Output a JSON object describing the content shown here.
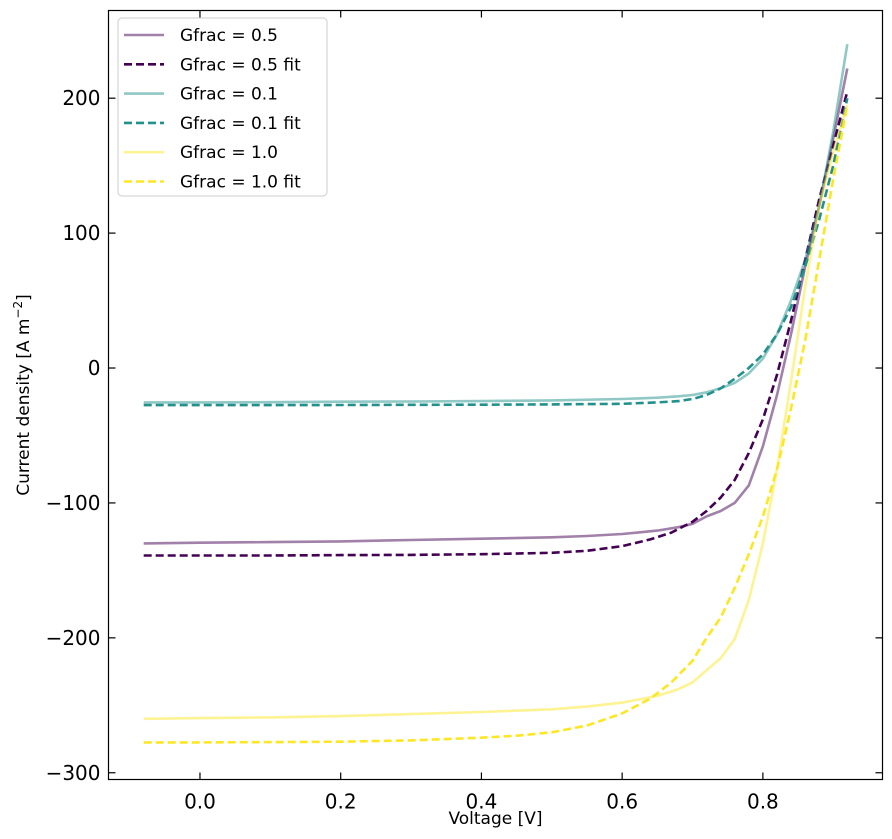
{
  "chart_data": {
    "type": "line",
    "xlabel": "Voltage [V]",
    "ylabel": "Current density [A m",
    "ylabel_sup": "−2",
    "ylabel_end": "]",
    "xlim": [
      -0.13,
      0.97
    ],
    "ylim": [
      -305,
      265
    ],
    "xticks": [
      0.0,
      0.2,
      0.4,
      0.6,
      0.8
    ],
    "xtick_labels": [
      "0.0",
      "0.2",
      "0.4",
      "0.6",
      "0.8"
    ],
    "yticks": [
      -300,
      -200,
      -100,
      0,
      100,
      200
    ],
    "ytick_labels": [
      "−300",
      "−200",
      "−100",
      "0",
      "100",
      "200"
    ],
    "grid": false,
    "legend_position": "top-left",
    "series": [
      {
        "name": "Gfrac = 0.5",
        "color": "#440154",
        "style": "solid",
        "opacity": 0.5,
        "x": [
          -0.08,
          0.0,
          0.1,
          0.2,
          0.3,
          0.4,
          0.5,
          0.55,
          0.6,
          0.65,
          0.68,
          0.7,
          0.72,
          0.74,
          0.76,
          0.78,
          0.8,
          0.82,
          0.84,
          0.86,
          0.88,
          0.9,
          0.92
        ],
        "y": [
          -130,
          -129.5,
          -129,
          -128.5,
          -127.5,
          -126.5,
          -125.5,
          -124.5,
          -123,
          -120.5,
          -118,
          -115.5,
          -110,
          -106,
          -100,
          -87,
          -58,
          -20,
          25,
          75,
          120,
          170,
          222
        ]
      },
      {
        "name": "Gfrac = 0.5 fit",
        "color": "#440154",
        "style": "dashed",
        "opacity": 1,
        "x": [
          -0.08,
          0.0,
          0.1,
          0.2,
          0.3,
          0.4,
          0.5,
          0.55,
          0.6,
          0.64,
          0.67,
          0.7,
          0.72,
          0.74,
          0.76,
          0.78,
          0.8,
          0.82,
          0.84,
          0.86,
          0.88,
          0.9,
          0.92
        ],
        "y": [
          -139,
          -139,
          -139,
          -138.7,
          -138.5,
          -138,
          -137,
          -135.5,
          -132,
          -127,
          -122,
          -114,
          -106,
          -96,
          -83,
          -63,
          -38,
          -5,
          35,
          80,
          125,
          165,
          205
        ]
      },
      {
        "name": "Gfrac = 0.1",
        "color": "#21918c",
        "style": "solid",
        "opacity": 0.5,
        "x": [
          -0.08,
          0.0,
          0.1,
          0.2,
          0.3,
          0.4,
          0.5,
          0.6,
          0.65,
          0.68,
          0.7,
          0.72,
          0.74,
          0.76,
          0.78,
          0.8,
          0.82,
          0.84,
          0.86,
          0.88,
          0.9,
          0.92
        ],
        "y": [
          -25.5,
          -25.5,
          -25.3,
          -25,
          -24.8,
          -24.5,
          -24,
          -23,
          -22,
          -21,
          -20,
          -18,
          -15,
          -11,
          -4,
          7,
          25,
          50,
          80,
          120,
          175,
          240
        ]
      },
      {
        "name": "Gfrac = 0.1 fit",
        "color": "#21918c",
        "style": "dashed",
        "opacity": 1,
        "x": [
          -0.08,
          0.0,
          0.1,
          0.2,
          0.3,
          0.4,
          0.5,
          0.6,
          0.65,
          0.68,
          0.7,
          0.72,
          0.74,
          0.76,
          0.78,
          0.8,
          0.82,
          0.84,
          0.86,
          0.88,
          0.9,
          0.92
        ],
        "y": [
          -27.5,
          -27.5,
          -27.5,
          -27.4,
          -27.3,
          -27.2,
          -27,
          -26.5,
          -25.5,
          -24.5,
          -23,
          -20,
          -15,
          -8,
          0,
          10,
          25,
          45,
          75,
          110,
          150,
          200
        ]
      },
      {
        "name": "Gfrac = 1.0",
        "color": "#fde725",
        "style": "solid",
        "opacity": 0.5,
        "x": [
          -0.08,
          0.0,
          0.1,
          0.2,
          0.3,
          0.4,
          0.5,
          0.55,
          0.6,
          0.65,
          0.68,
          0.7,
          0.72,
          0.74,
          0.76,
          0.78,
          0.8,
          0.82,
          0.84,
          0.86,
          0.88,
          0.9,
          0.92
        ],
        "y": [
          -260,
          -259.5,
          -259,
          -258,
          -256.5,
          -255,
          -253,
          -251,
          -248,
          -243,
          -238,
          -233,
          -224,
          -215,
          -201,
          -172,
          -130,
          -75,
          -10,
          60,
          120,
          160,
          195
        ]
      },
      {
        "name": "Gfrac = 1.0 fit",
        "color": "#fde725",
        "style": "dashed",
        "opacity": 1,
        "x": [
          -0.08,
          0.0,
          0.1,
          0.2,
          0.3,
          0.4,
          0.45,
          0.5,
          0.55,
          0.6,
          0.64,
          0.67,
          0.7,
          0.72,
          0.74,
          0.76,
          0.78,
          0.8,
          0.82,
          0.84,
          0.86,
          0.88,
          0.9,
          0.92
        ],
        "y": [
          -277.5,
          -277.5,
          -277.3,
          -277,
          -276,
          -274,
          -272.5,
          -270,
          -265,
          -256,
          -245,
          -233,
          -217,
          -200,
          -185,
          -163,
          -138,
          -110,
          -75,
          -30,
          20,
          80,
          140,
          195
        ]
      }
    ]
  }
}
